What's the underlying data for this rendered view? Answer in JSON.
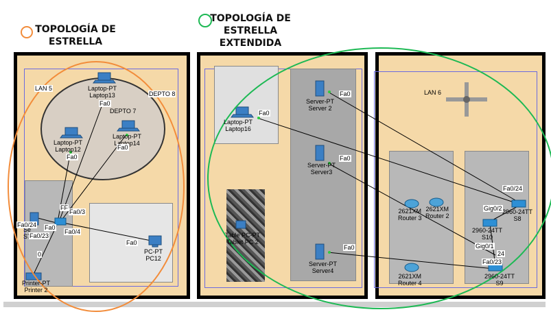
{
  "captions": {
    "left": "TOPOLOGÍA DE\nESTRELLA",
    "right": "TOPOLOGÍA DE\nESTRELLA\nEXTENDIDA"
  },
  "colors": {
    "orange": "#f28c3a",
    "green": "#1db954",
    "room_floor": "#f5d9a8",
    "link": "#000000"
  },
  "left_room": {
    "labels": {
      "lan": "LAN 5",
      "depto8": "DEPTO 8",
      "depto7": "DEPTO 7"
    },
    "devices": {
      "laptop13": "Laptop-PT\nLaptop13",
      "laptop12": "Laptop-PT\nLaptop12",
      "laptop14": "Laptop-PT\nLaptop14",
      "switch7": "Se\nS7",
      "pc12": "PC-PT\nPC12",
      "printer2": "Printer-PT\nPrinter 2"
    },
    "ports": {
      "l13": "Fa0",
      "l12": "Fa0",
      "l14": "Fa0",
      "sw_ff": "FF",
      "sw_fa03": "Fa0/3",
      "sw_fa024": "Fa0/24",
      "sw_fa0": "Fa0",
      "sw_fa023": "Fa0/23",
      "sw_fa04": "Fa0/4",
      "pc12": "Fa0",
      "printer": "0"
    }
  },
  "middle_room": {
    "devices": {
      "laptop16": "Laptop-PT\nLaptop16",
      "server2": "Server-PT\nServer 2",
      "server3": "Server-PT\nServer3",
      "server4": "Server-PT\nServer4",
      "tablet": "Table PC-PT\nTablet PC 2"
    },
    "ports": {
      "laptop16": "Fa0",
      "server2": "Fa0",
      "server3": "Fa0",
      "server4": "Fa0"
    }
  },
  "right_room": {
    "labels": {
      "lan": "LAN 6"
    },
    "devices": {
      "router3": "2621XM\nRouter 3",
      "router2": "2621XM\nRouter 2",
      "router4": "2621XM\nRouter 4",
      "s8": "2960-24TT\nS8",
      "s10": "2960-24TT\nS10",
      "s9": "2960-24TT\nS9"
    },
    "ports": {
      "fa024_top": "Fa0/24",
      "gig02": "Gig0/2",
      "gig01": "Gig0/1",
      "n24": "24",
      "fa023": "Fa0/23"
    }
  }
}
